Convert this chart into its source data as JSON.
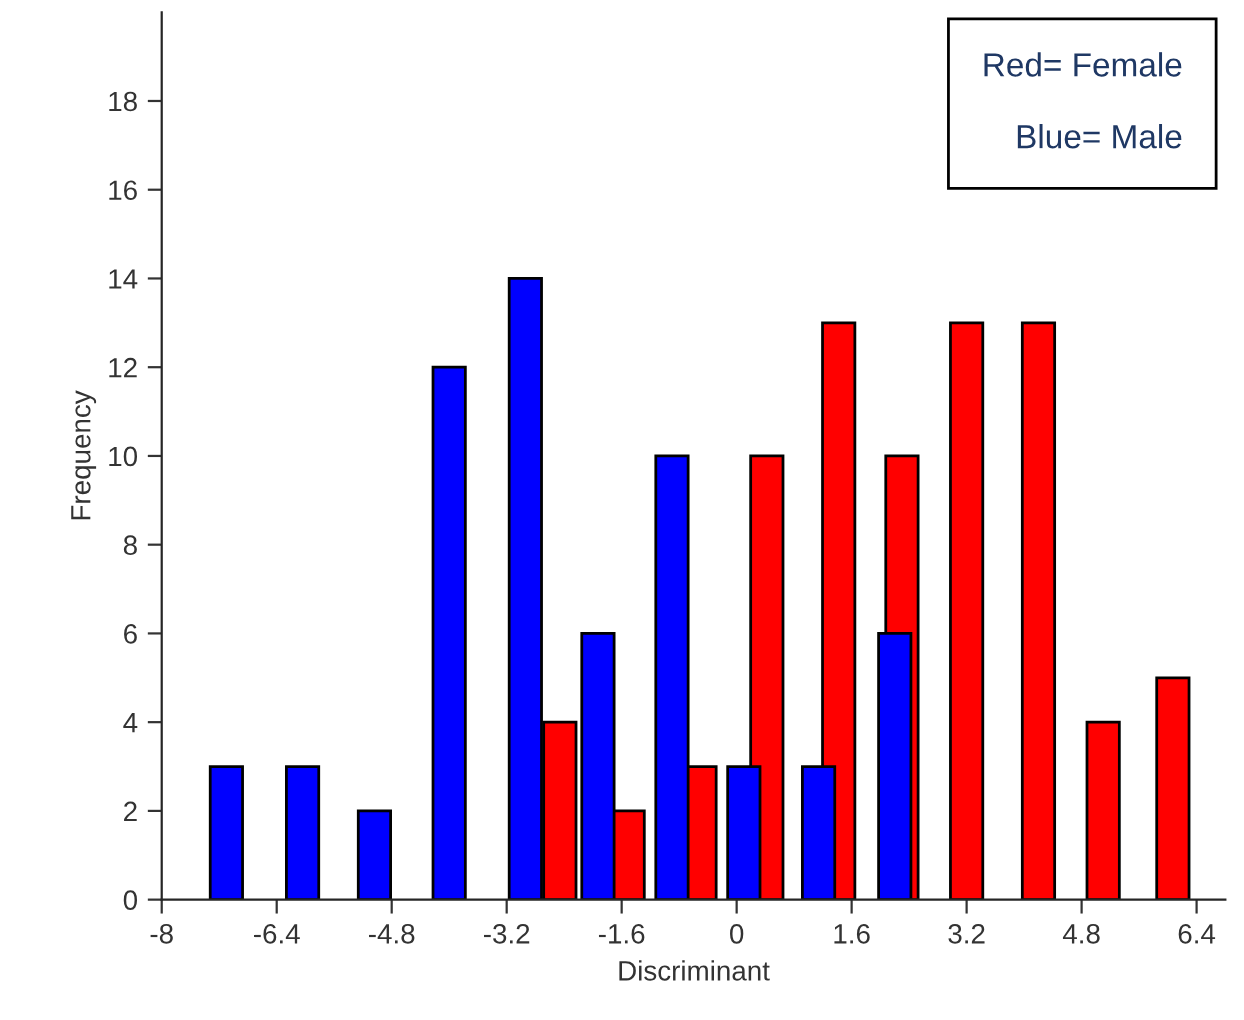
{
  "chart_data": {
    "type": "bar",
    "xlabel": "Discriminant",
    "ylabel": "Frequency",
    "xlim": [
      -8,
      6.8
    ],
    "xticks": [
      -8,
      -6.4,
      -4.8,
      -3.2,
      -1.6,
      0,
      1.6,
      3.2,
      4.8,
      6.4
    ],
    "ylim": [
      0,
      20
    ],
    "yticks": [
      0,
      2,
      4,
      6,
      8,
      10,
      12,
      14,
      16,
      18
    ],
    "series": [
      {
        "color": "#ff0000",
        "x": [
          -2.46,
          -1.51,
          -0.51,
          0.42,
          1.42,
          2.3,
          3.2,
          4.2,
          5.1,
          6.07
        ],
        "values": [
          4,
          2,
          3,
          10,
          13,
          10,
          13,
          13,
          4,
          5
        ]
      },
      {
        "color": "#0000ff",
        "x": [
          -7.1,
          -6.04,
          -5.04,
          -4.0,
          -2.94,
          -1.93,
          -0.9,
          0.1,
          1.14,
          2.2
        ],
        "values": [
          3,
          3,
          2,
          12,
          14,
          6,
          10,
          3,
          3,
          6
        ]
      }
    ],
    "annotations": [
      "Red= Female",
      "Blue= Male"
    ],
    "grid": false
  }
}
